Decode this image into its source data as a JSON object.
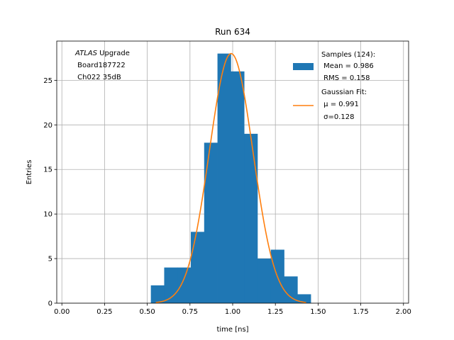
{
  "chart_data": {
    "type": "bar",
    "title": "Run 634",
    "xlabel": "time [ns]",
    "ylabel": "Entries",
    "xlim": [
      -0.03,
      2.03
    ],
    "ylim": [
      0,
      29.4
    ],
    "grid": true,
    "xticks": [
      "0.00",
      "0.25",
      "0.50",
      "0.75",
      "1.00",
      "1.25",
      "1.50",
      "1.75",
      "2.00"
    ],
    "xtick_values": [
      0.0,
      0.25,
      0.5,
      0.75,
      1.0,
      1.25,
      1.5,
      1.75,
      2.0
    ],
    "yticks": [
      "0",
      "5",
      "10",
      "15",
      "20",
      "25"
    ],
    "ytick_values": [
      0,
      5,
      10,
      15,
      20,
      25
    ],
    "bin_edges": [
      0.521,
      0.599,
      0.677,
      0.755,
      0.833,
      0.911,
      0.989,
      1.067,
      1.145,
      1.223,
      1.301,
      1.379,
      1.457
    ],
    "bin_values": [
      2,
      4,
      4,
      8,
      18,
      28,
      26,
      19,
      5,
      6,
      3,
      1
    ],
    "fit": {
      "mu": 0.991,
      "sigma": 0.128,
      "amplitude": 28,
      "x_start": 0.55,
      "x_end": 1.43
    },
    "series": [
      {
        "name_lines": [
          "Samples (124):",
          " Mean = 0.986",
          " RMS = 0.158"
        ],
        "color": "#1f77b4"
      },
      {
        "name_lines": [
          "Gaussian Fit:",
          " μ = 0.991",
          " σ=0.128"
        ],
        "color": "#ff7f0e"
      }
    ],
    "legend_placement": "top-right",
    "annotation": {
      "line1_italic": "ATLAS",
      "line1_rest": " Upgrade",
      "line2": " Board187722",
      "line3": " Ch022 35dB"
    }
  }
}
